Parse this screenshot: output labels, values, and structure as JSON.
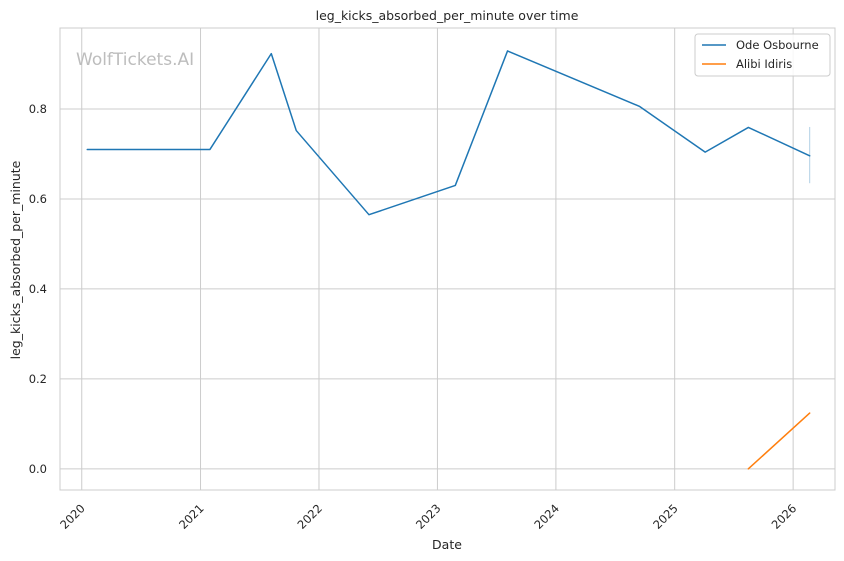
{
  "chart_data": {
    "type": "line",
    "title": "leg_kicks_absorbed_per_minute over time",
    "xlabel": "Date",
    "ylabel": "leg_kicks_absorbed_per_minute",
    "watermark": "WolfTickets.AI",
    "x_ticks": [
      "2020",
      "2021",
      "2022",
      "2023",
      "2024",
      "2025",
      "2026"
    ],
    "y_ticks": [
      "0.0",
      "0.2",
      "0.4",
      "0.6",
      "0.8"
    ],
    "ylim": [
      -0.047,
      0.98
    ],
    "xlim": [
      "2019-10-26",
      "2026-05-10"
    ],
    "grid": true,
    "legend_position": "top-right",
    "series": [
      {
        "name": "Ode Osbourne",
        "color": "#1f77b4",
        "points": [
          {
            "x": "2020-01-18",
            "y": 0.71
          },
          {
            "x": "2021-01-30",
            "y": 0.71
          },
          {
            "x": "2021-08-07",
            "y": 0.923
          },
          {
            "x": "2021-10-23",
            "y": 0.752
          },
          {
            "x": "2022-06-04",
            "y": 0.565
          },
          {
            "x": "2023-02-25",
            "y": 0.63
          },
          {
            "x": "2023-08-05",
            "y": 0.929
          },
          {
            "x": "2024-09-14",
            "y": 0.806
          },
          {
            "x": "2025-04-05",
            "y": 0.704
          },
          {
            "x": "2025-08-16",
            "y": 0.759
          },
          {
            "x": "2026-02-21",
            "y": 0.696
          }
        ],
        "error_bar": {
          "x": "2026-02-21",
          "low": 0.635,
          "high": 0.76
        }
      },
      {
        "name": "Alibi Idiris",
        "color": "#ff7f0e",
        "points": [
          {
            "x": "2025-08-16",
            "y": 0.0
          },
          {
            "x": "2026-02-21",
            "y": 0.124
          }
        ]
      }
    ]
  }
}
